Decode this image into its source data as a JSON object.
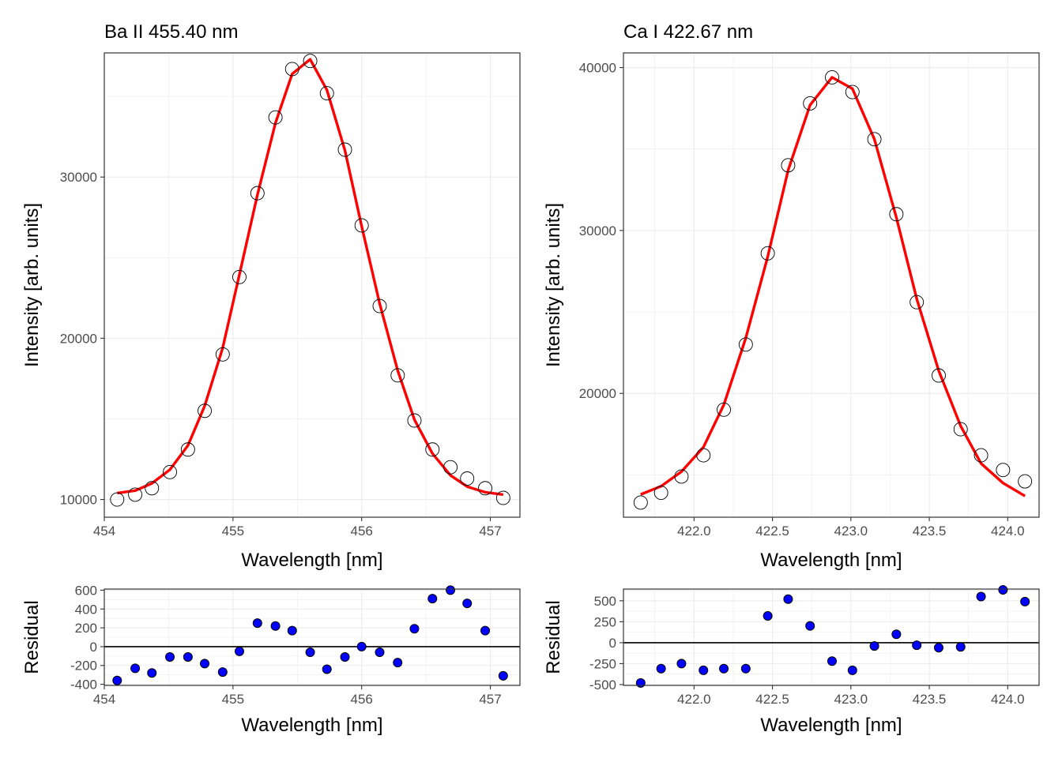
{
  "colors": {
    "fit_line": "#ff0000",
    "residual_point": "#0000ff",
    "observed_point_fill": "#ffffff",
    "point_outline": "#000000",
    "grid": "#ebebeb",
    "panel_border": "#333333",
    "tick_label": "#4d4d4d"
  },
  "chart_data": [
    {
      "id": "ba_main",
      "type": "line",
      "title": "Ba II 455.40 nm",
      "xlabel": "Wavelength [nm]",
      "ylabel": "Intensity [arb. units]",
      "xlim": [
        454.0,
        457.23
      ],
      "ylim": [
        8900,
        37700
      ],
      "x_ticks": [
        454,
        455,
        456,
        457
      ],
      "y_ticks": [
        10000,
        20000,
        30000
      ],
      "grid": true,
      "series": [
        {
          "kind": "points",
          "marker": "open-circle",
          "x": [
            454.1,
            454.24,
            454.37,
            454.51,
            454.65,
            454.78,
            454.92,
            455.05,
            455.19,
            455.33,
            455.46,
            455.6,
            455.73,
            455.87,
            456.0,
            456.14,
            456.28,
            456.41,
            456.55,
            456.69,
            456.82,
            456.96,
            457.1
          ],
          "y": [
            10000,
            10300,
            10700,
            11700,
            13100,
            15500,
            19000,
            23800,
            29000,
            33700,
            36700,
            37200,
            35200,
            31700,
            27000,
            22000,
            17700,
            14900,
            13100,
            12000,
            11300,
            10700,
            10100
          ]
        },
        {
          "kind": "line",
          "x": [
            454.1,
            454.24,
            454.37,
            454.51,
            454.65,
            454.78,
            454.92,
            455.05,
            455.19,
            455.33,
            455.46,
            455.6,
            455.73,
            455.87,
            456.0,
            456.14,
            456.28,
            456.41,
            456.55,
            456.69,
            456.82,
            456.96,
            457.1
          ],
          "y": [
            10400,
            10550,
            11000,
            11850,
            13350,
            15800,
            19400,
            23950,
            28900,
            33350,
            36400,
            37300,
            35400,
            31650,
            26950,
            22150,
            18000,
            14950,
            12850,
            11500,
            10800,
            10450,
            10300
          ]
        }
      ]
    },
    {
      "id": "ca_main",
      "type": "line",
      "title": "Ca I 422.67 nm",
      "xlabel": "Wavelength [nm]",
      "ylabel": "Intensity [arb. units]",
      "xlim": [
        421.55,
        424.2
      ],
      "ylim": [
        12400,
        40900
      ],
      "x_ticks": [
        422.0,
        422.5,
        423.0,
        423.5,
        424.0
      ],
      "x_tick_labels": [
        "422.0",
        "422.5",
        "423.0",
        "423.5",
        "424.0"
      ],
      "y_ticks": [
        20000,
        30000,
        40000
      ],
      "grid": true,
      "series": [
        {
          "kind": "points",
          "marker": "open-circle",
          "x": [
            421.66,
            421.79,
            421.92,
            422.06,
            422.19,
            422.33,
            422.47,
            422.6,
            422.74,
            422.88,
            423.01,
            423.15,
            423.29,
            423.42,
            423.56,
            423.7,
            423.83,
            423.97,
            424.11
          ],
          "y": [
            13300,
            13900,
            14900,
            16200,
            19000,
            23000,
            28600,
            34000,
            37800,
            39400,
            38500,
            35600,
            31000,
            25600,
            21100,
            17800,
            16200,
            15300,
            14600
          ]
        },
        {
          "kind": "line",
          "x": [
            421.66,
            421.79,
            421.92,
            422.06,
            422.19,
            422.33,
            422.47,
            422.6,
            422.74,
            422.88,
            423.01,
            423.15,
            423.29,
            423.42,
            423.56,
            423.7,
            423.83,
            423.97,
            424.11
          ],
          "y": [
            13800,
            14300,
            15200,
            16700,
            19300,
            23400,
            28400,
            33700,
            37700,
            39400,
            38700,
            35600,
            30800,
            25800,
            21400,
            18000,
            15700,
            14500,
            13700
          ]
        }
      ]
    },
    {
      "id": "ba_residual",
      "type": "scatter",
      "xlabel": "Wavelength [nm]",
      "ylabel": "Residual",
      "xlim": [
        454.0,
        457.23
      ],
      "ylim": [
        -412,
        612
      ],
      "x_ticks": [
        454,
        455,
        456,
        457
      ],
      "y_ticks": [
        -400,
        -200,
        0,
        200,
        400,
        600
      ],
      "zero_line": true,
      "grid": true,
      "series": [
        {
          "kind": "points",
          "marker": "filled-circle",
          "x": [
            454.1,
            454.24,
            454.37,
            454.51,
            454.65,
            454.78,
            454.92,
            455.05,
            455.19,
            455.33,
            455.46,
            455.6,
            455.73,
            455.87,
            456.0,
            456.14,
            456.28,
            456.41,
            456.55,
            456.69,
            456.82,
            456.96,
            457.1
          ],
          "y": [
            -360,
            -230,
            -280,
            -110,
            -110,
            -180,
            -270,
            -50,
            250,
            220,
            170,
            -60,
            -240,
            -110,
            0,
            -60,
            -170,
            190,
            510,
            600,
            460,
            170,
            -310
          ]
        }
      ]
    },
    {
      "id": "ca_residual",
      "type": "scatter",
      "xlabel": "Wavelength [nm]",
      "ylabel": "Residual",
      "xlim": [
        421.55,
        424.2
      ],
      "ylim": [
        -510,
        640
      ],
      "x_ticks": [
        422.0,
        422.5,
        423.0,
        423.5,
        424.0
      ],
      "x_tick_labels": [
        "422.0",
        "422.5",
        "423.0",
        "423.5",
        "424.0"
      ],
      "y_ticks": [
        -500,
        -250,
        0,
        250,
        500
      ],
      "y_tick_labels": [
        "-500",
        "-250",
        "0",
        "250",
        "500"
      ],
      "zero_line": true,
      "grid": true,
      "series": [
        {
          "kind": "points",
          "marker": "filled-circle",
          "x": [
            421.66,
            421.79,
            421.92,
            422.06,
            422.19,
            422.33,
            422.47,
            422.6,
            422.74,
            422.88,
            423.01,
            423.15,
            423.29,
            423.42,
            423.56,
            423.7,
            423.83,
            423.97,
            424.11
          ],
          "y": [
            -480,
            -310,
            -250,
            -330,
            -310,
            -310,
            320,
            520,
            200,
            -220,
            -330,
            -40,
            100,
            -30,
            -60,
            -50,
            550,
            630,
            490
          ]
        }
      ]
    }
  ]
}
